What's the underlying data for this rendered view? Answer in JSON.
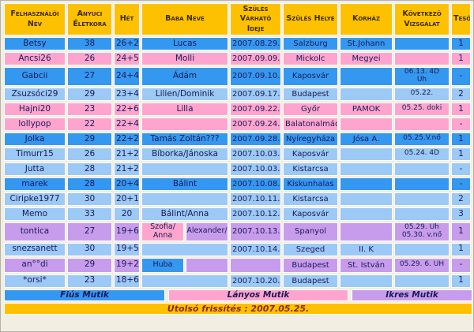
{
  "colors": {
    "blue": "#3598F0",
    "lightblue": "#9CC9F6",
    "pink": "#FDA5CE",
    "purple": "#C89CEC",
    "gold": "#FDC101",
    "cream": "#F2EEE1",
    "ink": "#1A1A55",
    "header_ink": "#3D2B00",
    "footer_ink": "#8B2A18"
  },
  "table": {
    "columns": [
      {
        "key": "username",
        "label": "Felhasználói Név"
      },
      {
        "key": "age",
        "label": "Anyuci Életkora"
      },
      {
        "key": "week",
        "label": "Hét"
      },
      {
        "key": "baby",
        "label": "Baba Neve"
      },
      {
        "key": "due",
        "label": "Szülés Várható Ideje"
      },
      {
        "key": "place",
        "label": "Szülés Helye"
      },
      {
        "key": "hospital",
        "label": "Korház"
      },
      {
        "key": "next",
        "label": "Következő Vizsgálat"
      },
      {
        "key": "sibling",
        "label": "Tesó"
      }
    ],
    "rows": [
      {
        "color": "blue",
        "username": "Betsy",
        "age": "38",
        "week": "26+2",
        "baby": "Lucas",
        "due": "2007.08.29.",
        "place": "Salzburg",
        "hospital": "St.Johann",
        "next": "",
        "sibling": "1"
      },
      {
        "color": "pink",
        "username": "Ancsi26",
        "age": "26",
        "week": "24+5",
        "baby": "Molli",
        "due": "2007.09.09.",
        "place": "Mickolc",
        "hospital": "Megyei",
        "next": "",
        "sibling": "1"
      },
      {
        "color": "blue",
        "username": "Gabcii",
        "age": "27",
        "week": "24+4",
        "baby": "Ádám",
        "due": "2007.09.10.",
        "place": "Kaposvár",
        "hospital": "",
        "next": "06.13. 4D\nUh",
        "sibling": "-"
      },
      {
        "color": "lightblue",
        "username": "Zsuzsóci29",
        "age": "29",
        "week": "23+4",
        "baby": "Lilien/Dominik",
        "due": "2007.09.17.",
        "place": "Budapest",
        "hospital": "",
        "next": "05.22.",
        "sibling": "2"
      },
      {
        "color": "pink",
        "username": "Hajni20",
        "age": "23",
        "week": "22+6",
        "baby": "Lilla",
        "due": "2007.09.22.",
        "place": "Győr",
        "hospital": "PAMOK",
        "next": "05.25. doki",
        "sibling": "1"
      },
      {
        "color": "pink",
        "username": "lollypop",
        "age": "22",
        "week": "22+4",
        "baby": "",
        "due": "2007.09.24.",
        "place": "Balatonalmádi",
        "hospital": "",
        "next": "",
        "sibling": "-"
      },
      {
        "color": "blue",
        "username": "Jolka",
        "age": "29",
        "week": "22+2",
        "baby": "Tamás Zoltán???",
        "due": "2007.09.28.",
        "place": "Nyíregyháza",
        "hospital": "Jósa A.",
        "next": "05.25.V.nő",
        "sibling": "1"
      },
      {
        "color": "lightblue",
        "username": "Timurr15",
        "age": "26",
        "week": "21+2",
        "baby": "Bíborka/Jánoska",
        "due": "2007.10.03.",
        "place": "Kaposvár",
        "hospital": "",
        "next": "05.24. 4D",
        "sibling": "1"
      },
      {
        "color": "lightblue",
        "username": "Jutta",
        "age": "28",
        "week": "21+2",
        "baby": "",
        "due": "2007.10.03.",
        "place": "Kistarcsa",
        "hospital": "",
        "next": "",
        "sibling": "-"
      },
      {
        "color": "blue",
        "username": "marek",
        "age": "28",
        "week": "20+4",
        "baby": "Bálint",
        "due": "2007.10.08.",
        "place": "Kiskunhalas",
        "hospital": "",
        "next": "",
        "sibling": "-"
      },
      {
        "color": "lightblue",
        "username": "Ciripke1977",
        "age": "30",
        "week": "20+1",
        "baby": "",
        "due": "2007.10.11.",
        "place": "Kistarcsa",
        "hospital": "",
        "next": "",
        "sibling": "2"
      },
      {
        "color": "lightblue",
        "username": "Memo",
        "age": "33",
        "week": "20",
        "baby": "Bálint/Anna",
        "due": "2007.10.12.",
        "place": "Kaposvár",
        "hospital": "",
        "next": "",
        "sibling": "3"
      },
      {
        "color": "purple",
        "username": "tontica",
        "age": "27",
        "week": "19+6",
        "baby_split": [
          {
            "bg": "pink",
            "text": "Szofia/\nAnna"
          },
          {
            "bg": "purple",
            "text": "Alexander/"
          }
        ],
        "due": "2007.10.13.",
        "place": "Spanyol",
        "hospital": "",
        "next": "05.29. Uh\n05.30. v.nő",
        "sibling": "1"
      },
      {
        "color": "lightblue",
        "username": "snezsanett",
        "age": "30",
        "week": "19+5",
        "baby": "",
        "due": "2007.10.14.",
        "place": "Szeged",
        "hospital": "II. K",
        "next": "",
        "sibling": "1"
      },
      {
        "color": "purple",
        "username": "an°°di",
        "age": "29",
        "week": "19+2",
        "baby_split": [
          {
            "bg": "blue",
            "text": "Huba"
          },
          {
            "bg": "purple",
            "text": ""
          }
        ],
        "due": "",
        "place": "Budapest",
        "hospital": "St. István",
        "next": "05.29. 6. UH",
        "sibling": "-"
      },
      {
        "color": "lightblue",
        "username": "*orsi*",
        "age": "23",
        "week": "18+6",
        "baby": "",
        "due": "2007.10.20.",
        "place": "Budapest",
        "hospital": "",
        "next": "",
        "sibling": "1"
      }
    ]
  },
  "legend": {
    "boys": "Fiús Mutik",
    "girls": "Lányos Mutik",
    "twins": "Ikres Mutik"
  },
  "footer": {
    "text": "Utolsó frissítés : 2007.05.25."
  }
}
